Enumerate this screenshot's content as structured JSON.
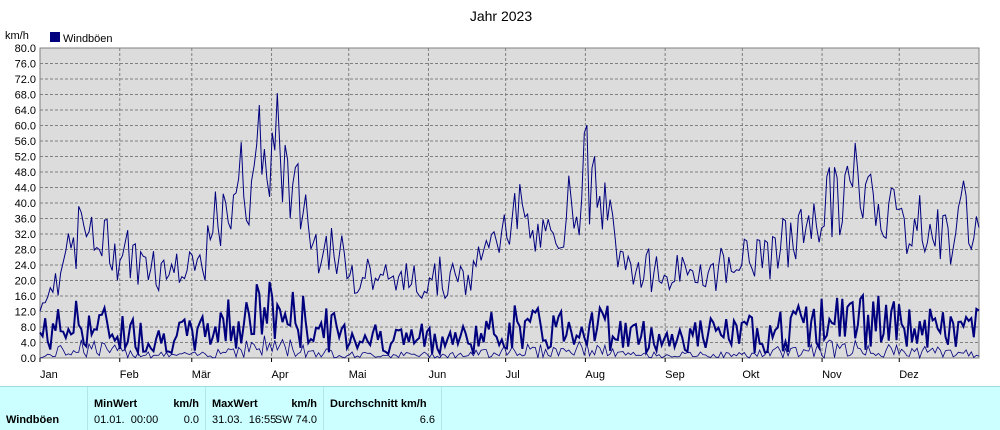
{
  "chart_data": {
    "type": "line",
    "title": "Jahr 2023",
    "ylabel": "km/h",
    "ylim": [
      0,
      80
    ],
    "y_ticks": [
      "0.0",
      "4.0",
      "8.0",
      "12.0",
      "16.0",
      "20.0",
      "24.0",
      "28.0",
      "32.0",
      "36.0",
      "40.0",
      "44.0",
      "48.0",
      "52.0",
      "56.0",
      "60.0",
      "64.0",
      "68.0",
      "72.0",
      "76.0",
      "80.0"
    ],
    "x_ticks": [
      "Jan",
      "Feb",
      "Mär",
      "Apr",
      "Mai",
      "Jun",
      "Jul",
      "Aug",
      "Sep",
      "Okt",
      "Nov",
      "Dez"
    ],
    "legend": "top-left",
    "grid": true,
    "series": [
      {
        "name": "Windböen",
        "color": "#00007f",
        "x": [
          "01.01.",
          "15.01.",
          "01.02.",
          "15.02.",
          "01.03.",
          "15.03.",
          "31.03.",
          "15.04.",
          "01.05.",
          "15.05.",
          "01.06.",
          "15.06.",
          "01.07.",
          "15.07.",
          "01.08.",
          "15.08.",
          "01.09.",
          "15.09.",
          "01.10.",
          "15.10.",
          "01.11.",
          "15.11.",
          "01.12.",
          "15.12.",
          "31.12."
        ],
        "y_max": [
          18,
          44,
          37,
          32,
          30,
          58,
          74,
          42,
          30,
          27,
          28,
          27,
          52,
          38,
          64,
          32,
          28,
          30,
          34,
          38,
          52,
          61,
          48,
          42,
          52
        ],
        "y_mean": [
          6,
          9,
          7,
          5,
          6,
          10,
          12,
          8,
          6,
          5,
          5,
          5,
          8,
          7,
          10,
          6,
          5,
          6,
          6,
          7,
          9,
          10,
          8,
          7,
          8
        ],
        "y_min": [
          0,
          4,
          2,
          1,
          1,
          3,
          4,
          2,
          1,
          1,
          1,
          1,
          3,
          2,
          3,
          1,
          1,
          1,
          1,
          2,
          3,
          3,
          2,
          2,
          1
        ]
      }
    ]
  },
  "stats": {
    "row_label": "Windböen",
    "min_header": "MinWert",
    "min_unit": "km/h",
    "min_time": "01.01.  00:00",
    "min_value": "0.0",
    "max_header": "MaxWert",
    "max_unit": "km/h",
    "max_time": "31.03.  16:55",
    "max_dir_value": "SW 74.0",
    "avg_header": "Durchschnitt km/h",
    "avg_value": "6.6"
  }
}
